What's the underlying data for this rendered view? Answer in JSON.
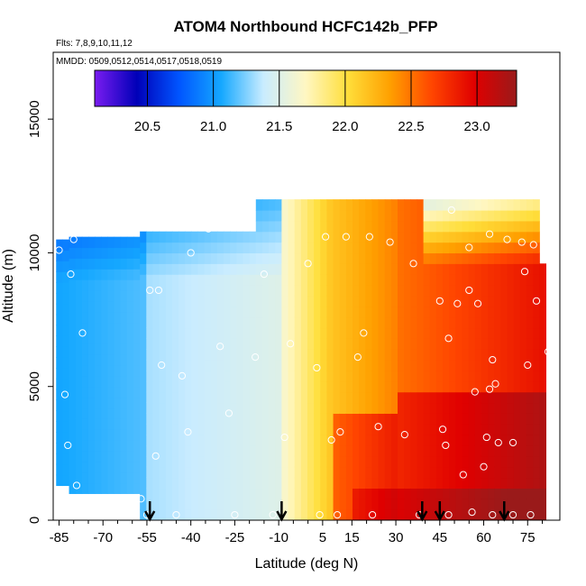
{
  "chart_data": {
    "type": "heatmap",
    "title": "ATOM4 Northbound HCFC142b_PFP",
    "flights_label": "Flts: 7,8,9,10,11,12",
    "mmdd_label": "MMDD: 0509,0512,0514,0517,0518,0519",
    "xlabel": "Latitude (deg N)",
    "ylabel": "Altitude (m)",
    "xlim": [
      -87,
      86
    ],
    "ylim": [
      0,
      17500
    ],
    "x_ticks": [
      -85,
      -70,
      -55,
      -40,
      -25,
      -10,
      5,
      15,
      30,
      45,
      60,
      75
    ],
    "x_tick_labels": [
      "-85",
      "-70",
      "-55",
      "-40",
      "-25",
      "-10",
      "5",
      "15",
      "30",
      "45",
      "60",
      "75"
    ],
    "y_ticks": [
      0,
      5000,
      10000,
      15000
    ],
    "y_tick_labels": [
      "0",
      "5000",
      "10000",
      "15000"
    ],
    "colorbar": {
      "min": 20.1,
      "max": 23.3,
      "ticks": [
        20.5,
        21.0,
        21.5,
        22.0,
        22.5,
        23.0
      ],
      "tick_labels": [
        "20.5",
        "21.0",
        "21.5",
        "22.0",
        "22.5",
        "23.0"
      ],
      "colors": [
        "#7a1cf0",
        "#0000b8",
        "#0055ff",
        "#15a8ff",
        "#c9ecff",
        "#fff7c2",
        "#ffde3a",
        "#ffa000",
        "#ff4500",
        "#e00000",
        "#9a1a1a"
      ]
    },
    "arrows_latitude": [
      -54,
      -9,
      39,
      45,
      67
    ],
    "sample_points": [
      {
        "x": -85,
        "y": 10100
      },
      {
        "x": -81,
        "y": 9200
      },
      {
        "x": -80,
        "y": 10500
      },
      {
        "x": -77,
        "y": 7000
      },
      {
        "x": -82,
        "y": 2800
      },
      {
        "x": -83,
        "y": 4700
      },
      {
        "x": -79,
        "y": 1300
      },
      {
        "x": -57,
        "y": 800
      },
      {
        "x": -54,
        "y": 8600
      },
      {
        "x": -51,
        "y": 8600
      },
      {
        "x": -50,
        "y": 5800
      },
      {
        "x": -52,
        "y": 2400
      },
      {
        "x": -43,
        "y": 5400
      },
      {
        "x": -41,
        "y": 3300
      },
      {
        "x": -40,
        "y": 10000
      },
      {
        "x": -34,
        "y": 10900
      },
      {
        "x": -30,
        "y": 6500
      },
      {
        "x": -27,
        "y": 4000
      },
      {
        "x": -22,
        "y": 11000
      },
      {
        "x": -18,
        "y": 6100
      },
      {
        "x": -15,
        "y": 9200
      },
      {
        "x": -8,
        "y": 3100
      },
      {
        "x": -6,
        "y": 6600
      },
      {
        "x": 0,
        "y": 9600
      },
      {
        "x": 3,
        "y": 5700
      },
      {
        "x": 4,
        "y": 200
      },
      {
        "x": 6,
        "y": 10600
      },
      {
        "x": 8,
        "y": 3000
      },
      {
        "x": 11,
        "y": 3300
      },
      {
        "x": 13,
        "y": 10600
      },
      {
        "x": 17,
        "y": 6100
      },
      {
        "x": 19,
        "y": 7000
      },
      {
        "x": 21,
        "y": 10600
      },
      {
        "x": 24,
        "y": 3500
      },
      {
        "x": 28,
        "y": 10400
      },
      {
        "x": 33,
        "y": 3200
      },
      {
        "x": 36,
        "y": 9600
      },
      {
        "x": 45,
        "y": 8200
      },
      {
        "x": 46,
        "y": 3400
      },
      {
        "x": 47,
        "y": 2800
      },
      {
        "x": 48,
        "y": 6800
      },
      {
        "x": 51,
        "y": 8100
      },
      {
        "x": 53,
        "y": 1700
      },
      {
        "x": 55,
        "y": 8600
      },
      {
        "x": 49,
        "y": 11600
      },
      {
        "x": 55,
        "y": 10200
      },
      {
        "x": 57,
        "y": 4800
      },
      {
        "x": 58,
        "y": 8100
      },
      {
        "x": 60,
        "y": 2000
      },
      {
        "x": 61,
        "y": 3100
      },
      {
        "x": 62,
        "y": 4900
      },
      {
        "x": 63,
        "y": 6000
      },
      {
        "x": 64,
        "y": 5100
      },
      {
        "x": 65,
        "y": 2900
      },
      {
        "x": 62,
        "y": 10700
      },
      {
        "x": 68,
        "y": 10500
      },
      {
        "x": 70,
        "y": 2900
      },
      {
        "x": 73,
        "y": 10400
      },
      {
        "x": 74,
        "y": 9300
      },
      {
        "x": 75,
        "y": 5800
      },
      {
        "x": 77,
        "y": 10300
      },
      {
        "x": 78,
        "y": 8200
      },
      {
        "x": 82,
        "y": 6300
      },
      {
        "x": -55,
        "y": 200
      },
      {
        "x": -45,
        "y": 200
      },
      {
        "x": -25,
        "y": 200
      },
      {
        "x": -12,
        "y": 200
      },
      {
        "x": 10,
        "y": 200
      },
      {
        "x": 22,
        "y": 200
      },
      {
        "x": 38,
        "y": 200
      },
      {
        "x": 48,
        "y": 200
      },
      {
        "x": 56,
        "y": 300
      },
      {
        "x": 63,
        "y": 200
      },
      {
        "x": 70,
        "y": 200
      },
      {
        "x": 76,
        "y": 200
      }
    ]
  }
}
